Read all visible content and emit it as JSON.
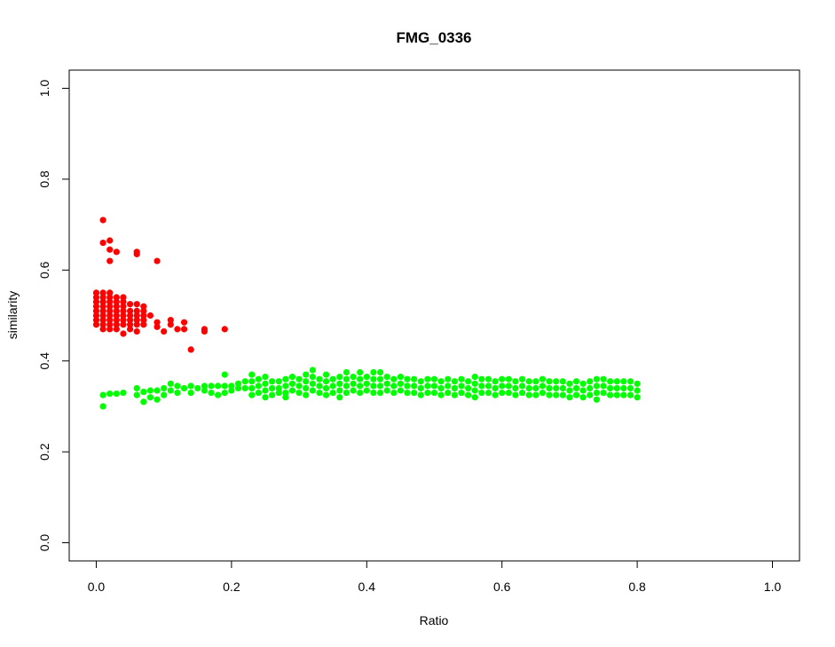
{
  "chart_data": {
    "type": "scatter",
    "title": "FMG_0336",
    "xlabel": "Ratio",
    "ylabel": "similarity",
    "xlim": [
      -0.04,
      1.04
    ],
    "ylim": [
      -0.04,
      1.04
    ],
    "xticks": [
      "0.0",
      "0.2",
      "0.4",
      "0.6",
      "0.8",
      "1.0"
    ],
    "yticks": [
      "0.0",
      "0.2",
      "0.4",
      "0.6",
      "0.8",
      "1.0"
    ],
    "grid": false,
    "legend": "none",
    "series": [
      {
        "color": "#ff0000",
        "points": [
          [
            0.01,
            0.71
          ],
          [
            0.01,
            0.66
          ],
          [
            0.02,
            0.665
          ],
          [
            0.02,
            0.645
          ],
          [
            0.02,
            0.62
          ],
          [
            0.03,
            0.64
          ],
          [
            0.06,
            0.64
          ],
          [
            0.06,
            0.635
          ],
          [
            0.09,
            0.62
          ],
          [
            0.0,
            0.55
          ],
          [
            0.0,
            0.54
          ],
          [
            0.0,
            0.53
          ],
          [
            0.0,
            0.52
          ],
          [
            0.0,
            0.51
          ],
          [
            0.0,
            0.5
          ],
          [
            0.0,
            0.49
          ],
          [
            0.0,
            0.48
          ],
          [
            0.01,
            0.55
          ],
          [
            0.01,
            0.54
          ],
          [
            0.01,
            0.53
          ],
          [
            0.01,
            0.52
          ],
          [
            0.01,
            0.51
          ],
          [
            0.01,
            0.5
          ],
          [
            0.01,
            0.49
          ],
          [
            0.01,
            0.48
          ],
          [
            0.01,
            0.47
          ],
          [
            0.02,
            0.55
          ],
          [
            0.02,
            0.54
          ],
          [
            0.02,
            0.53
          ],
          [
            0.02,
            0.52
          ],
          [
            0.02,
            0.51
          ],
          [
            0.02,
            0.5
          ],
          [
            0.02,
            0.49
          ],
          [
            0.02,
            0.48
          ],
          [
            0.02,
            0.47
          ],
          [
            0.03,
            0.54
          ],
          [
            0.03,
            0.53
          ],
          [
            0.03,
            0.52
          ],
          [
            0.03,
            0.51
          ],
          [
            0.03,
            0.5
          ],
          [
            0.03,
            0.49
          ],
          [
            0.03,
            0.48
          ],
          [
            0.03,
            0.47
          ],
          [
            0.04,
            0.54
          ],
          [
            0.04,
            0.53
          ],
          [
            0.04,
            0.52
          ],
          [
            0.04,
            0.51
          ],
          [
            0.04,
            0.5
          ],
          [
            0.04,
            0.49
          ],
          [
            0.04,
            0.48
          ],
          [
            0.04,
            0.46
          ],
          [
            0.05,
            0.525
          ],
          [
            0.05,
            0.51
          ],
          [
            0.05,
            0.5
          ],
          [
            0.05,
            0.49
          ],
          [
            0.05,
            0.48
          ],
          [
            0.05,
            0.47
          ],
          [
            0.06,
            0.525
          ],
          [
            0.06,
            0.51
          ],
          [
            0.06,
            0.5
          ],
          [
            0.06,
            0.49
          ],
          [
            0.06,
            0.48
          ],
          [
            0.06,
            0.465
          ],
          [
            0.07,
            0.52
          ],
          [
            0.07,
            0.51
          ],
          [
            0.07,
            0.5
          ],
          [
            0.07,
            0.49
          ],
          [
            0.07,
            0.48
          ],
          [
            0.08,
            0.5
          ],
          [
            0.09,
            0.485
          ],
          [
            0.09,
            0.475
          ],
          [
            0.1,
            0.465
          ],
          [
            0.11,
            0.49
          ],
          [
            0.11,
            0.48
          ],
          [
            0.12,
            0.47
          ],
          [
            0.13,
            0.485
          ],
          [
            0.13,
            0.47
          ],
          [
            0.14,
            0.425
          ],
          [
            0.16,
            0.47
          ],
          [
            0.16,
            0.465
          ],
          [
            0.19,
            0.47
          ]
        ]
      },
      {
        "color": "#00ff00",
        "points": [
          [
            0.01,
            0.3
          ],
          [
            0.01,
            0.325
          ],
          [
            0.02,
            0.328
          ],
          [
            0.03,
            0.328
          ],
          [
            0.04,
            0.33
          ],
          [
            0.06,
            0.34
          ],
          [
            0.06,
            0.325
          ],
          [
            0.07,
            0.31
          ],
          [
            0.07,
            0.332
          ],
          [
            0.08,
            0.335
          ],
          [
            0.08,
            0.32
          ],
          [
            0.09,
            0.335
          ],
          [
            0.09,
            0.315
          ],
          [
            0.1,
            0.34
          ],
          [
            0.1,
            0.325
          ],
          [
            0.11,
            0.35
          ],
          [
            0.11,
            0.335
          ],
          [
            0.12,
            0.345
          ],
          [
            0.12,
            0.33
          ],
          [
            0.13,
            0.34
          ],
          [
            0.14,
            0.345
          ],
          [
            0.14,
            0.33
          ],
          [
            0.15,
            0.34
          ],
          [
            0.16,
            0.345
          ],
          [
            0.16,
            0.335
          ],
          [
            0.17,
            0.345
          ],
          [
            0.17,
            0.33
          ],
          [
            0.18,
            0.345
          ],
          [
            0.18,
            0.325
          ],
          [
            0.19,
            0.37
          ],
          [
            0.19,
            0.345
          ],
          [
            0.19,
            0.33
          ],
          [
            0.2,
            0.345
          ],
          [
            0.2,
            0.335
          ],
          [
            0.21,
            0.35
          ],
          [
            0.21,
            0.34
          ],
          [
            0.22,
            0.355
          ],
          [
            0.22,
            0.34
          ],
          [
            0.23,
            0.37
          ],
          [
            0.23,
            0.355
          ],
          [
            0.23,
            0.34
          ],
          [
            0.23,
            0.325
          ],
          [
            0.24,
            0.36
          ],
          [
            0.24,
            0.345
          ],
          [
            0.24,
            0.33
          ],
          [
            0.25,
            0.365
          ],
          [
            0.25,
            0.35
          ],
          [
            0.25,
            0.335
          ],
          [
            0.25,
            0.32
          ],
          [
            0.26,
            0.355
          ],
          [
            0.26,
            0.34
          ],
          [
            0.26,
            0.325
          ],
          [
            0.27,
            0.355
          ],
          [
            0.27,
            0.34
          ],
          [
            0.27,
            0.33
          ],
          [
            0.28,
            0.36
          ],
          [
            0.28,
            0.345
          ],
          [
            0.28,
            0.33
          ],
          [
            0.28,
            0.32
          ],
          [
            0.29,
            0.365
          ],
          [
            0.29,
            0.35
          ],
          [
            0.29,
            0.335
          ],
          [
            0.3,
            0.36
          ],
          [
            0.3,
            0.345
          ],
          [
            0.3,
            0.33
          ],
          [
            0.31,
            0.37
          ],
          [
            0.31,
            0.355
          ],
          [
            0.31,
            0.34
          ],
          [
            0.31,
            0.325
          ],
          [
            0.32,
            0.38
          ],
          [
            0.32,
            0.365
          ],
          [
            0.32,
            0.35
          ],
          [
            0.32,
            0.335
          ],
          [
            0.33,
            0.36
          ],
          [
            0.33,
            0.345
          ],
          [
            0.33,
            0.33
          ],
          [
            0.34,
            0.37
          ],
          [
            0.34,
            0.355
          ],
          [
            0.34,
            0.34
          ],
          [
            0.34,
            0.325
          ],
          [
            0.35,
            0.36
          ],
          [
            0.35,
            0.345
          ],
          [
            0.35,
            0.33
          ],
          [
            0.36,
            0.365
          ],
          [
            0.36,
            0.35
          ],
          [
            0.36,
            0.335
          ],
          [
            0.36,
            0.32
          ],
          [
            0.37,
            0.375
          ],
          [
            0.37,
            0.36
          ],
          [
            0.37,
            0.345
          ],
          [
            0.37,
            0.33
          ],
          [
            0.38,
            0.365
          ],
          [
            0.38,
            0.35
          ],
          [
            0.38,
            0.335
          ],
          [
            0.39,
            0.375
          ],
          [
            0.39,
            0.36
          ],
          [
            0.39,
            0.345
          ],
          [
            0.39,
            0.33
          ],
          [
            0.4,
            0.365
          ],
          [
            0.4,
            0.35
          ],
          [
            0.4,
            0.335
          ],
          [
            0.41,
            0.375
          ],
          [
            0.41,
            0.36
          ],
          [
            0.41,
            0.345
          ],
          [
            0.41,
            0.33
          ],
          [
            0.42,
            0.375
          ],
          [
            0.42,
            0.36
          ],
          [
            0.42,
            0.345
          ],
          [
            0.42,
            0.33
          ],
          [
            0.43,
            0.365
          ],
          [
            0.43,
            0.35
          ],
          [
            0.43,
            0.335
          ],
          [
            0.44,
            0.36
          ],
          [
            0.44,
            0.345
          ],
          [
            0.44,
            0.33
          ],
          [
            0.45,
            0.365
          ],
          [
            0.45,
            0.35
          ],
          [
            0.45,
            0.335
          ],
          [
            0.46,
            0.36
          ],
          [
            0.46,
            0.345
          ],
          [
            0.46,
            0.33
          ],
          [
            0.47,
            0.36
          ],
          [
            0.47,
            0.345
          ],
          [
            0.47,
            0.33
          ],
          [
            0.48,
            0.355
          ],
          [
            0.48,
            0.34
          ],
          [
            0.48,
            0.325
          ],
          [
            0.49,
            0.36
          ],
          [
            0.49,
            0.345
          ],
          [
            0.49,
            0.33
          ],
          [
            0.5,
            0.36
          ],
          [
            0.5,
            0.345
          ],
          [
            0.5,
            0.33
          ],
          [
            0.51,
            0.355
          ],
          [
            0.51,
            0.34
          ],
          [
            0.51,
            0.325
          ],
          [
            0.52,
            0.36
          ],
          [
            0.52,
            0.345
          ],
          [
            0.52,
            0.33
          ],
          [
            0.53,
            0.355
          ],
          [
            0.53,
            0.34
          ],
          [
            0.53,
            0.325
          ],
          [
            0.54,
            0.36
          ],
          [
            0.54,
            0.345
          ],
          [
            0.54,
            0.33
          ],
          [
            0.55,
            0.355
          ],
          [
            0.55,
            0.34
          ],
          [
            0.55,
            0.325
          ],
          [
            0.56,
            0.365
          ],
          [
            0.56,
            0.35
          ],
          [
            0.56,
            0.335
          ],
          [
            0.56,
            0.32
          ],
          [
            0.57,
            0.36
          ],
          [
            0.57,
            0.345
          ],
          [
            0.57,
            0.33
          ],
          [
            0.58,
            0.36
          ],
          [
            0.58,
            0.345
          ],
          [
            0.58,
            0.33
          ],
          [
            0.59,
            0.355
          ],
          [
            0.59,
            0.34
          ],
          [
            0.59,
            0.325
          ],
          [
            0.6,
            0.36
          ],
          [
            0.6,
            0.345
          ],
          [
            0.6,
            0.33
          ],
          [
            0.61,
            0.36
          ],
          [
            0.61,
            0.345
          ],
          [
            0.61,
            0.33
          ],
          [
            0.62,
            0.355
          ],
          [
            0.62,
            0.34
          ],
          [
            0.62,
            0.325
          ],
          [
            0.63,
            0.36
          ],
          [
            0.63,
            0.345
          ],
          [
            0.63,
            0.33
          ],
          [
            0.64,
            0.355
          ],
          [
            0.64,
            0.34
          ],
          [
            0.64,
            0.325
          ],
          [
            0.65,
            0.355
          ],
          [
            0.65,
            0.34
          ],
          [
            0.65,
            0.325
          ],
          [
            0.66,
            0.36
          ],
          [
            0.66,
            0.345
          ],
          [
            0.66,
            0.33
          ],
          [
            0.67,
            0.355
          ],
          [
            0.67,
            0.34
          ],
          [
            0.67,
            0.325
          ],
          [
            0.68,
            0.355
          ],
          [
            0.68,
            0.34
          ],
          [
            0.68,
            0.325
          ],
          [
            0.69,
            0.355
          ],
          [
            0.69,
            0.34
          ],
          [
            0.69,
            0.325
          ],
          [
            0.7,
            0.35
          ],
          [
            0.7,
            0.335
          ],
          [
            0.7,
            0.32
          ],
          [
            0.71,
            0.355
          ],
          [
            0.71,
            0.34
          ],
          [
            0.71,
            0.325
          ],
          [
            0.72,
            0.35
          ],
          [
            0.72,
            0.335
          ],
          [
            0.72,
            0.32
          ],
          [
            0.73,
            0.355
          ],
          [
            0.73,
            0.34
          ],
          [
            0.73,
            0.325
          ],
          [
            0.74,
            0.36
          ],
          [
            0.74,
            0.345
          ],
          [
            0.74,
            0.33
          ],
          [
            0.74,
            0.315
          ],
          [
            0.75,
            0.36
          ],
          [
            0.75,
            0.345
          ],
          [
            0.75,
            0.33
          ],
          [
            0.76,
            0.355
          ],
          [
            0.76,
            0.34
          ],
          [
            0.76,
            0.325
          ],
          [
            0.77,
            0.355
          ],
          [
            0.77,
            0.34
          ],
          [
            0.77,
            0.325
          ],
          [
            0.78,
            0.355
          ],
          [
            0.78,
            0.34
          ],
          [
            0.78,
            0.325
          ],
          [
            0.79,
            0.355
          ],
          [
            0.79,
            0.34
          ],
          [
            0.79,
            0.325
          ],
          [
            0.8,
            0.35
          ],
          [
            0.8,
            0.335
          ],
          [
            0.8,
            0.32
          ]
        ]
      }
    ]
  }
}
